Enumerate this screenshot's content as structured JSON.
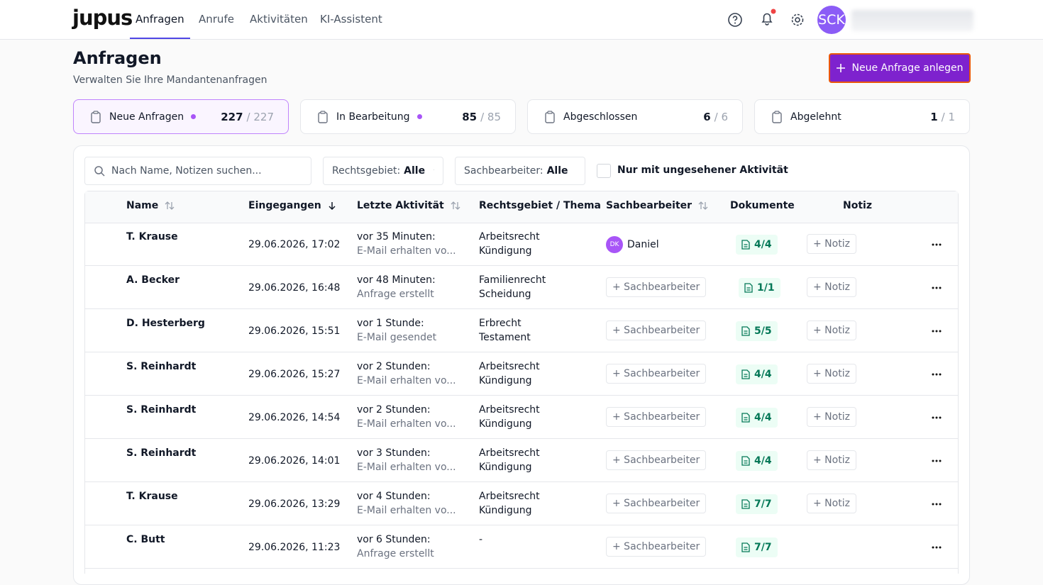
{
  "nav": {
    "logo": "jupus",
    "tabs": [
      "Anfragen",
      "Anrufe",
      "Aktivitäten",
      "KI-Assistent"
    ],
    "avatar": "SCK"
  },
  "header": {
    "title": "Anfragen",
    "subtitle": "Verwalten Sie Ihre Mandantenanfragen",
    "button": "Neue Anfrage anlegen"
  },
  "stats": [
    {
      "label": "Neue Anfragen",
      "count": "227",
      "total": "/ 227"
    },
    {
      "label": "In Bearbeitung",
      "count": "85",
      "total": "/ 85"
    },
    {
      "label": "Abgeschlossen",
      "count": "6",
      "total": "/ 6"
    },
    {
      "label": "Abgelehnt",
      "count": "1",
      "total": "/ 1"
    }
  ],
  "filters": {
    "search": "Nach Name, Notizen suchen...",
    "area_label": "Rechtsgebiet:",
    "area_value": "Alle",
    "assignee_label": "Sachbearbeiter:",
    "assignee_value": "Alle",
    "checkbox": "Nur mit ungesehener Aktivität"
  },
  "table": {
    "columns": [
      "Name",
      "Eingegangen",
      "Letzte Aktivität",
      "Rechtsgebiet / Thema",
      "Sachbearbeiter",
      "Dokumente",
      "Notiz"
    ],
    "rows": [
      {
        "name": "T. Krause",
        "received": "29.06.2026, 17:02",
        "activity": "vor 35 Minuten:",
        "activity_detail": "E-Mail erhalten vo...",
        "area": "Arbeitsrecht",
        "topic": "Kündigung",
        "assignee": {
          "initials": "DK",
          "name": "Daniel"
        },
        "documents": "4/4",
        "note": "+ Notiz"
      },
      {
        "name": "A. Becker",
        "received": "29.06.2026, 16:48",
        "activity": "vor 48 Minuten:",
        "activity_detail": "Anfrage erstellt",
        "area": "Familienrecht",
        "topic": "Scheidung",
        "assign": "+ Sachbearbeiter",
        "documents": "1/1",
        "note": "+ Notiz"
      },
      {
        "name": "D. Hesterberg",
        "received": "29.06.2026, 15:51",
        "activity": "vor 1 Stunde:",
        "activity_detail": "E-Mail gesendet",
        "area": "Erbrecht",
        "topic": "Testament",
        "assign": "+ Sachbearbeiter",
        "documents": "5/5",
        "note": "+ Notiz"
      },
      {
        "name": "S. Reinhardt",
        "received": "29.06.2026, 15:27",
        "activity": "vor 2 Stunden:",
        "activity_detail": "E-Mail erhalten vo...",
        "area": "Arbeitsrecht",
        "topic": "Kündigung",
        "assign": "+ Sachbearbeiter",
        "documents": "4/4",
        "note": "+ Notiz"
      },
      {
        "name": "S. Reinhardt",
        "received": "29.06.2026, 14:54",
        "activity": "vor 2 Stunden:",
        "activity_detail": "E-Mail erhalten vo...",
        "area": "Arbeitsrecht",
        "topic": "Kündigung",
        "assign": "+ Sachbearbeiter",
        "documents": "4/4",
        "note": "+ Notiz"
      },
      {
        "name": "S. Reinhardt",
        "received": "29.06.2026, 14:01",
        "activity": "vor 3 Stunden:",
        "activity_detail": "E-Mail erhalten vo...",
        "area": "Arbeitsrecht",
        "topic": "Kündigung",
        "assign": "+ Sachbearbeiter",
        "documents": "4/4",
        "note": "+ Notiz"
      },
      {
        "name": "T. Krause",
        "received": "29.06.2026, 13:29",
        "activity": "vor 4 Stunden:",
        "activity_detail": "E-Mail erhalten vo...",
        "area": "Arbeitsrecht",
        "topic": "Kündigung",
        "assign": "+ Sachbearbeiter",
        "documents": "7/7",
        "note": "+ Notiz"
      },
      {
        "name": "C. Butt",
        "received": "29.06.2026, 11:23",
        "activity": "vor 6 Stunden:",
        "activity_detail": "Anfrage erstellt",
        "area": "-",
        "assign": "+ Sachbearbeiter",
        "documents": "7/7"
      }
    ]
  }
}
